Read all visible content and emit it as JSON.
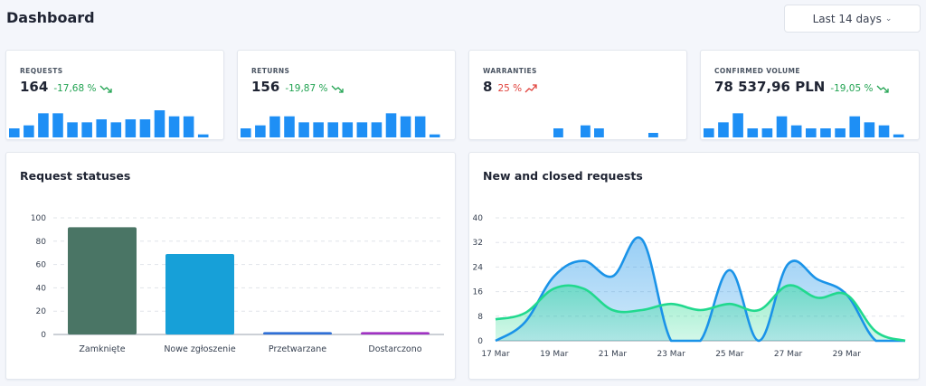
{
  "header": {
    "title": "Dashboard",
    "range_label": "Last 14 days"
  },
  "kpis": [
    {
      "label": "REQUESTS",
      "value": "164",
      "change": "-17,68 %",
      "trend": "down",
      "bars": [
        3,
        4,
        8,
        8,
        5,
        5,
        6,
        5,
        6,
        6,
        9,
        7,
        7,
        1
      ]
    },
    {
      "label": "RETURNS",
      "value": "156",
      "change": "-19,87 %",
      "trend": "down",
      "bars": [
        3,
        4,
        7,
        7,
        5,
        5,
        5,
        5,
        5,
        5,
        8,
        7,
        7,
        1
      ]
    },
    {
      "label": "WARRANTIES",
      "value": "8",
      "change": "25 %",
      "trend": "up",
      "bars": [
        0,
        0,
        0,
        0,
        0,
        0,
        3,
        0,
        4,
        3,
        0,
        0,
        0,
        1.5,
        0
      ]
    },
    {
      "label": "CONFIRMED VOLUME",
      "value": "78 537,96 PLN",
      "change": "-19,05 %",
      "trend": "down",
      "bars": [
        3,
        5,
        8,
        3,
        3,
        7,
        4,
        3,
        3,
        3,
        7,
        5,
        4,
        1
      ]
    }
  ],
  "colors": {
    "spark_bar": "#1e8ff5",
    "zamkniete": "#4a7565",
    "nowe": "#17a0d8",
    "przetwarzane": "#2f6fd6",
    "dostarczono": "#a032c2",
    "new_line": "#1a93e8",
    "closed_line": "#21d98e"
  },
  "request_statuses": {
    "title": "Request statuses",
    "chart_data": {
      "type": "bar",
      "categories": [
        "Zamknięte",
        "Nowe zgłoszenie",
        "Przetwarzane",
        "Dostarczono"
      ],
      "values": [
        92,
        69,
        2,
        2
      ],
      "ylim": [
        0,
        100
      ],
      "yticks": [
        0,
        20,
        40,
        60,
        80,
        100
      ],
      "grid": true
    }
  },
  "new_closed": {
    "title": "New and closed requests",
    "chart_data": {
      "type": "area",
      "x": [
        "17 Mar",
        "18 Mar",
        "19 Mar",
        "20 Mar",
        "21 Mar",
        "22 Mar",
        "23 Mar",
        "24 Mar",
        "25 Mar",
        "26 Mar",
        "27 Mar",
        "28 Mar",
        "29 Mar",
        "30 Mar",
        "31 Mar"
      ],
      "xticks": [
        "17 Mar",
        "19 Mar",
        "21 Mar",
        "23 Mar",
        "25 Mar",
        "27 Mar",
        "29 Mar"
      ],
      "series": [
        {
          "values": [
            0,
            6,
            21,
            26,
            21,
            33,
            0,
            0,
            23,
            0,
            25,
            20,
            15,
            0,
            0
          ]
        },
        {
          "values": [
            7,
            9,
            17,
            17,
            10,
            10,
            12,
            10,
            12,
            10,
            18,
            14,
            15,
            3,
            0
          ]
        }
      ],
      "ylim": [
        0,
        40
      ],
      "yticks": [
        0,
        8,
        16,
        24,
        32,
        40
      ],
      "grid": true
    }
  }
}
